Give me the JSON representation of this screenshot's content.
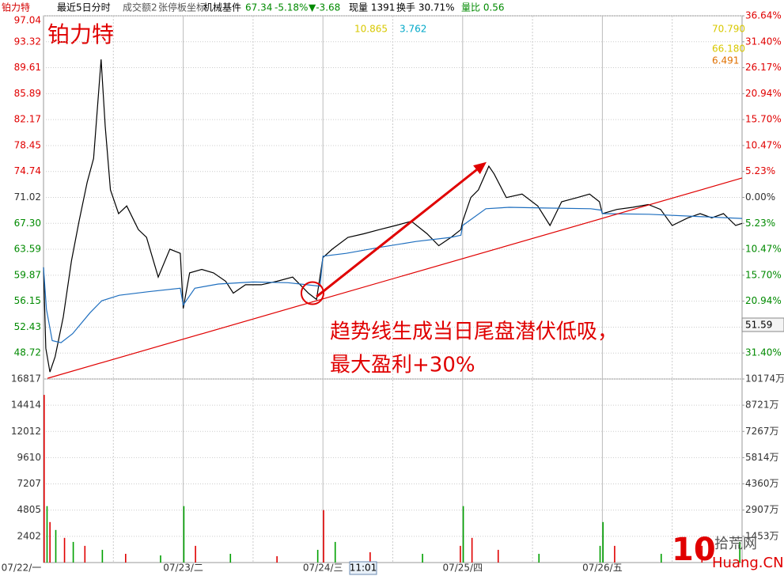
{
  "chart_data": {
    "type": "line",
    "title": "铂力特",
    "header": [
      {
        "text": "铂力特",
        "color": "#d40000"
      },
      {
        "text": "最近5日分时",
        "color": "#000000"
      },
      {
        "text": "成交额2",
        "color": "#555555"
      },
      {
        "text": "张停板坐标",
        "color": "#555555"
      },
      {
        "text": "机械基件",
        "color": "#000000"
      },
      {
        "text": "67.34",
        "color": "#008a00"
      },
      {
        "text": "-5.18%",
        "color": "#008a00"
      },
      {
        "text": "▼-3.68",
        "color": "#008a00"
      },
      {
        "text": "现量 1391",
        "color": "#000000"
      },
      {
        "text": "换手 30.71%",
        "color": "#000000"
      },
      {
        "text": "量比 0.56",
        "color": "#008a00"
      }
    ],
    "top_labels": [
      {
        "text": "10.865",
        "color": "#d8c800"
      },
      {
        "text": "3.762",
        "color": "#00a8c8"
      },
      {
        "text": "70.790",
        "color": "#d8c800"
      },
      {
        "text": "66.180",
        "color": "#d8c800"
      },
      {
        "text": "6.491",
        "color": "#e07000"
      }
    ],
    "annotation": [
      "趋势线生成当日尾盘潜伏低吸，",
      "最大盈利+30%"
    ],
    "cursor_price": "51.59",
    "cursor_time": "11:01",
    "date_labels": [
      "07/22/一",
      "07/23/二",
      "07/24/三",
      "07/25/四",
      "07/26/五"
    ],
    "watermark": {
      "logo": "10",
      "site": "拾荒网",
      "domain": "Huang.CN"
    },
    "xlim": [
      0,
      1200
    ],
    "ylim": [
      45,
      97.04
    ],
    "yticks": [
      97.04,
      93.32,
      89.61,
      85.89,
      82.17,
      78.45,
      74.74,
      71.02,
      {
        "value": 67.3,
        "label": "67.30"
      },
      63.59,
      59.87,
      56.15,
      52.43,
      48.72
    ],
    "y2lim": [
      -36.64,
      36.64
    ],
    "y2ticks": [
      {
        "value": 36.64,
        "label": "36.64%"
      },
      {
        "value": 31.4,
        "label": "31.40%"
      },
      {
        "value": 26.17,
        "label": "26.17%"
      },
      {
        "value": 20.94,
        "label": "20.94%"
      },
      {
        "value": 15.7,
        "label": "15.70%"
      },
      {
        "value": 10.47,
        "label": "10.47%"
      },
      {
        "value": 5.23,
        "label": "5.23%"
      },
      {
        "value": 0,
        "label": "0.00%"
      },
      {
        "value": -5.23,
        "label": "5.23%"
      },
      {
        "value": -10.47,
        "label": "10.47%"
      },
      {
        "value": -15.7,
        "label": "15.70%"
      },
      {
        "value": -20.94,
        "label": "20.94%"
      },
      {
        "value": -26.17,
        "label": "26.17%"
      },
      {
        "value": -31.4,
        "label": "31.40%"
      }
    ],
    "grid": true,
    "series": [
      {
        "color": "#000000",
        "x": [
          0,
          4,
          11,
          20,
          34,
          48,
          61,
          75,
          86,
          99,
          106,
          115,
          129,
          143,
          163,
          177,
          197,
          217,
          235,
          240,
          251,
          272,
          292,
          313,
          326,
          347,
          374,
          401,
          428,
          455,
          469,
          480,
          496,
          523,
          550,
          577,
          605,
          632,
          659,
          679,
          700,
          717,
          720,
          734,
          747,
          765,
          774,
          795,
          822,
          849,
          870,
          890,
          917,
          938,
          955,
          960,
          985,
          1012,
          1039,
          1060,
          1080,
          1107,
          1128,
          1148,
          1168,
          1189,
          1200
        ],
        "values": [
          61.0,
          49.4,
          46.0,
          48.2,
          53.9,
          61.9,
          67.6,
          73.2,
          76.6,
          90.8,
          81.2,
          72.1,
          68.7,
          69.8,
          66.4,
          65.3,
          59.6,
          63.6,
          63.0,
          55.1,
          60.2,
          60.7,
          60.2,
          59.0,
          57.3,
          58.5,
          58.5,
          59.0,
          59.6,
          57.3,
          56.4,
          62.4,
          63.6,
          65.3,
          65.8,
          66.4,
          67.0,
          67.6,
          65.8,
          64.1,
          65.3,
          66.4,
          67.6,
          71.0,
          72.1,
          75.5,
          74.4,
          71.0,
          71.5,
          69.8,
          67.0,
          70.4,
          71.0,
          71.5,
          70.4,
          68.7,
          69.3,
          69.6,
          70.0,
          69.3,
          67.0,
          68.1,
          68.7,
          68.1,
          68.7,
          67.0,
          67.3
        ]
      },
      {
        "color": "#1f6fbf",
        "x": [
          0,
          5,
          15,
          30,
          50,
          80,
          100,
          130,
          180,
          235,
          240,
          260,
          300,
          360,
          420,
          475,
          480,
          520,
          580,
          640,
          700,
          717,
          720,
          760,
          800,
          860,
          940,
          958,
          960,
          1040,
          1120,
          1200
        ],
        "values": [
          61.0,
          55.0,
          50.5,
          50.2,
          51.5,
          54.5,
          56.2,
          57.0,
          57.5,
          58.0,
          55.6,
          58.0,
          58.6,
          58.9,
          58.8,
          58.3,
          62.6,
          63.0,
          63.9,
          64.7,
          65.3,
          65.6,
          67.0,
          69.4,
          69.6,
          69.5,
          69.4,
          69.2,
          68.7,
          68.6,
          68.3,
          68.0
        ]
      }
    ],
    "trendline": {
      "color": "#e00000",
      "x": [
        7,
        1200
      ],
      "values": [
        45.1,
        73.8
      ]
    },
    "arrow": {
      "color": "#e00000",
      "x": [
        469,
        761
      ],
      "values": [
        56.8,
        76.1
      ]
    },
    "circle": {
      "color": "#e00000",
      "x": 462,
      "value": 57.3
    },
    "volume": {
      "ylim": [
        0,
        16817
      ],
      "yticks": [
        16817,
        14414,
        12012,
        9610,
        7207,
        4805,
        2402
      ],
      "y2lim": [
        0,
        10174
      ],
      "y2ticks": [
        {
          "value": 10174,
          "label": "10174万"
        },
        {
          "value": 8721,
          "label": "8721万"
        },
        {
          "value": 7267,
          "label": "7267万"
        },
        {
          "value": 5814,
          "label": "5814万"
        },
        {
          "value": 4360,
          "label": "4360万"
        },
        {
          "value": 2907,
          "label": "2907万"
        },
        {
          "value": 1453,
          "label": "1453万"
        }
      ],
      "x": [
        0,
        5,
        10,
        20,
        35,
        50,
        70,
        100,
        140,
        200,
        240,
        260,
        320,
        400,
        470,
        480,
        500,
        560,
        650,
        715,
        720,
        735,
        780,
        850,
        955,
        960,
        980,
        1060,
        1130,
        1195
      ],
      "values": [
        15360,
        5170,
        3710,
        2985,
        2260,
        1890,
        1530,
        1165,
        800,
        655,
        5170,
        1530,
        800,
        580,
        1165,
        4805,
        1890,
        945,
        800,
        1530,
        5170,
        2260,
        1165,
        800,
        1530,
        3710,
        1530,
        800,
        1530,
        1890
      ],
      "colors": [
        "#e00000",
        "#00a000",
        "#e00000",
        "#00a000",
        "#e00000",
        "#00a000",
        "#e00000",
        "#00a000",
        "#e00000",
        "#00a000",
        "#00a000",
        "#e00000",
        "#00a000",
        "#e00000",
        "#00a000",
        "#e00000",
        "#00a000",
        "#e00000",
        "#00a000",
        "#e00000",
        "#00a000",
        "#e00000",
        "#e00000",
        "#00a000",
        "#00a000",
        "#00a000",
        "#e00000",
        "#00a000",
        "#e00000",
        "#00a000"
      ]
    }
  }
}
